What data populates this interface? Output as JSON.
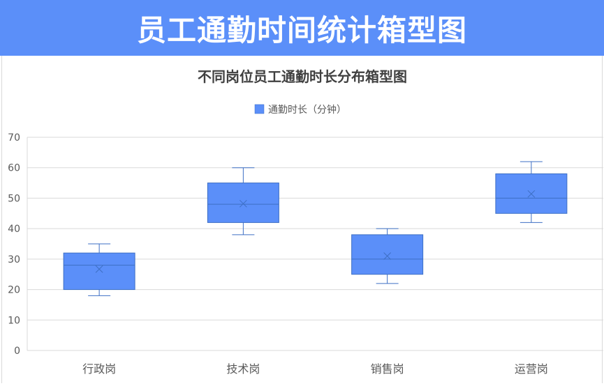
{
  "page": {
    "header_title": "员工通勤时间统计箱型图"
  },
  "colors": {
    "header_bg": "#5B8FF9",
    "box_fill": "#5B8FF9",
    "box_stroke": "#3D6FC4",
    "grid": "#d9d9d9",
    "axis_text": "#595959",
    "title_text": "#404040"
  },
  "chart_data": {
    "type": "boxplot",
    "title": "不同岗位员工通勤时长分布箱型图",
    "legend": {
      "label": "通勤时长（分钟）",
      "position": "top"
    },
    "ylim": [
      0,
      70
    ],
    "yticks": [
      0,
      10,
      20,
      30,
      40,
      50,
      60,
      70
    ],
    "grid": true,
    "categories": [
      "行政岗",
      "技术岗",
      "销售岗",
      "运营岗"
    ],
    "series": [
      {
        "name": "通勤时长（分钟）",
        "boxes": [
          {
            "min": 18,
            "q1": 20,
            "median": 28,
            "q3": 32,
            "max": 35,
            "mean": 26.7
          },
          {
            "min": 38,
            "q1": 42,
            "median": 48,
            "q3": 55,
            "max": 60,
            "mean": 48.2
          },
          {
            "min": 22,
            "q1": 25,
            "median": 30,
            "q3": 38,
            "max": 40,
            "mean": 31
          },
          {
            "min": 42,
            "q1": 45,
            "median": 50,
            "q3": 58,
            "max": 62,
            "mean": 51.4
          }
        ]
      }
    ]
  }
}
